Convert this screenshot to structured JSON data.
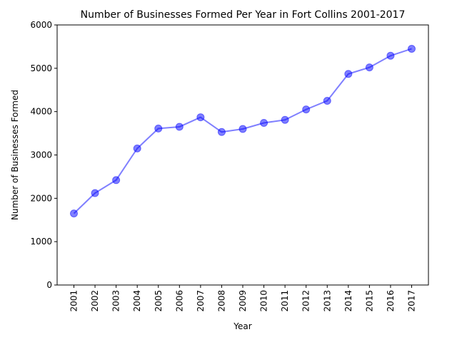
{
  "chart_data": {
    "type": "line",
    "title": "Number of Businesses Formed Per Year in Fort Collins 2001-2017",
    "xlabel": "Year",
    "ylabel": "Number of Businesses Formed",
    "x": [
      "2001",
      "2002",
      "2003",
      "2004",
      "2005",
      "2006",
      "2007",
      "2008",
      "2009",
      "2010",
      "2011",
      "2012",
      "2013",
      "2014",
      "2015",
      "2016",
      "2017"
    ],
    "series": [
      {
        "values": [
          1650,
          2120,
          2420,
          3150,
          3610,
          3650,
          3870,
          3530,
          3600,
          3740,
          3810,
          4050,
          4250,
          4870,
          5020,
          5290,
          5450
        ]
      }
    ],
    "ylim": [
      0,
      6000
    ],
    "yticks": [
      "0",
      "1000",
      "2000",
      "3000",
      "4000",
      "5000",
      "6000"
    ],
    "grid": false,
    "line_color": "#0000ff",
    "marker_color": "#0000ff"
  }
}
